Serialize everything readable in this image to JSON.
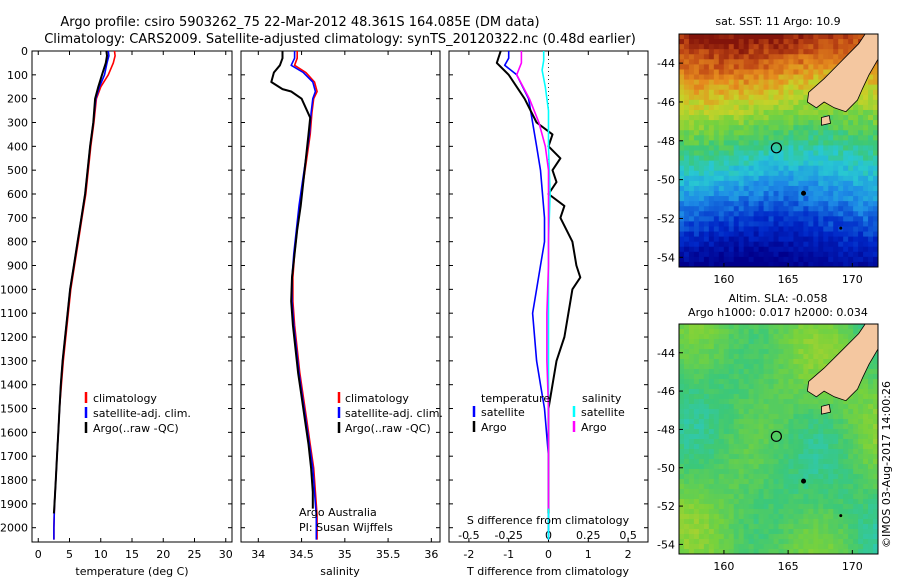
{
  "header": {
    "line1": "Argo profile: csiro 5903262_75 22-Mar-2012 48.361S 164.085E (DM data)",
    "line2": "Climatology: CARS2009. Satellite-adjusted climatology: synTS_20120322.nc (0.48d earlier)"
  },
  "colors": {
    "climatology": "#ff0000",
    "satellite": "#0000ff",
    "argo": "#000000",
    "sat_salinity": "#00ffff",
    "argo_salinity": "#ff00ff",
    "land": "#f4c7a0"
  },
  "credits": {
    "agency": "Argo Australia",
    "pi": "PI: Susan Wijffels",
    "stamp": "©IMOS 03-Aug-2017 14:00:26"
  },
  "chart_data": [
    {
      "type": "line",
      "id": "temperature",
      "xlabel": "temperature (deg C)",
      "xlim": [
        -1,
        31
      ],
      "xticks": [
        0,
        5,
        10,
        15,
        20,
        25,
        30
      ],
      "ylim": [
        0,
        2060
      ],
      "yticks": [
        0,
        100,
        200,
        300,
        400,
        500,
        600,
        700,
        800,
        900,
        1000,
        1100,
        1200,
        1300,
        1400,
        1500,
        1600,
        1700,
        1800,
        1900,
        2000
      ],
      "legend": [
        "climatology",
        "satellite-adj. clim.",
        "Argo(..raw -QC)"
      ],
      "series": [
        {
          "name": "climatology",
          "key": "climatology",
          "points": [
            [
              12.2,
              0
            ],
            [
              12.3,
              20
            ],
            [
              12.0,
              50
            ],
            [
              11.2,
              100
            ],
            [
              10.0,
              150
            ],
            [
              9.3,
              200
            ],
            [
              8.9,
              300
            ],
            [
              8.4,
              400
            ],
            [
              8.0,
              500
            ],
            [
              7.6,
              600
            ],
            [
              7.0,
              700
            ],
            [
              6.4,
              800
            ],
            [
              5.8,
              900
            ],
            [
              5.2,
              1000
            ],
            [
              4.8,
              1100
            ],
            [
              4.4,
              1200
            ],
            [
              4.0,
              1300
            ],
            [
              3.7,
              1400
            ],
            [
              3.4,
              1500
            ],
            [
              3.2,
              1600
            ],
            [
              3.0,
              1700
            ],
            [
              2.8,
              1800
            ],
            [
              2.6,
              1900
            ],
            [
              2.5,
              2000
            ],
            [
              2.5,
              2050
            ]
          ]
        },
        {
          "name": "satellite-adj. clim.",
          "key": "satellite",
          "points": [
            [
              11.2,
              0
            ],
            [
              11.3,
              20
            ],
            [
              11.0,
              50
            ],
            [
              10.6,
              100
            ],
            [
              9.8,
              150
            ],
            [
              9.2,
              200
            ],
            [
              8.8,
              300
            ],
            [
              8.3,
              400
            ],
            [
              7.9,
              500
            ],
            [
              7.5,
              600
            ],
            [
              6.9,
              700
            ],
            [
              6.3,
              800
            ],
            [
              5.7,
              900
            ],
            [
              5.1,
              1000
            ],
            [
              4.7,
              1100
            ],
            [
              4.3,
              1200
            ],
            [
              3.9,
              1300
            ],
            [
              3.6,
              1400
            ],
            [
              3.4,
              1500
            ],
            [
              3.2,
              1600
            ],
            [
              3.0,
              1700
            ],
            [
              2.8,
              1800
            ],
            [
              2.6,
              1900
            ],
            [
              2.5,
              2000
            ],
            [
              2.5,
              2050
            ]
          ]
        },
        {
          "name": "Argo(..raw -QC)",
          "key": "argo",
          "points": [
            [
              10.9,
              0
            ],
            [
              11.0,
              20
            ],
            [
              10.8,
              50
            ],
            [
              10.2,
              100
            ],
            [
              9.6,
              150
            ],
            [
              9.1,
              200
            ],
            [
              8.8,
              300
            ],
            [
              8.3,
              400
            ],
            [
              7.9,
              500
            ],
            [
              7.5,
              600
            ],
            [
              6.9,
              700
            ],
            [
              6.3,
              800
            ],
            [
              5.7,
              900
            ],
            [
              5.1,
              1000
            ],
            [
              4.7,
              1100
            ],
            [
              4.3,
              1200
            ],
            [
              3.9,
              1300
            ],
            [
              3.6,
              1400
            ],
            [
              3.4,
              1500
            ],
            [
              3.2,
              1600
            ],
            [
              3.0,
              1700
            ],
            [
              2.8,
              1800
            ],
            [
              2.6,
              1900
            ],
            [
              2.5,
              1940
            ]
          ]
        }
      ]
    },
    {
      "type": "line",
      "id": "salinity",
      "xlabel": "salinity",
      "xlim": [
        33.8,
        36.1
      ],
      "xticks": [
        34,
        34.5,
        35,
        35.5,
        36
      ],
      "ylim": [
        0,
        2060
      ],
      "legend": [
        "climatology",
        "satellite-adj. clim.",
        "Argo(..raw -QC)"
      ],
      "series": [
        {
          "name": "climatology",
          "key": "climatology",
          "points": [
            [
              34.45,
              0
            ],
            [
              34.45,
              30
            ],
            [
              34.42,
              60
            ],
            [
              34.55,
              90
            ],
            [
              34.65,
              130
            ],
            [
              34.68,
              170
            ],
            [
              34.64,
              200
            ],
            [
              34.62,
              260
            ],
            [
              34.6,
              350
            ],
            [
              34.56,
              450
            ],
            [
              34.52,
              550
            ],
            [
              34.48,
              650
            ],
            [
              34.45,
              750
            ],
            [
              34.42,
              850
            ],
            [
              34.4,
              950
            ],
            [
              34.4,
              1050
            ],
            [
              34.42,
              1150
            ],
            [
              34.45,
              1250
            ],
            [
              34.48,
              1350
            ],
            [
              34.52,
              1450
            ],
            [
              34.56,
              1550
            ],
            [
              34.6,
              1650
            ],
            [
              34.64,
              1750
            ],
            [
              34.66,
              1850
            ],
            [
              34.68,
              1950
            ],
            [
              34.68,
              2050
            ]
          ]
        },
        {
          "name": "satellite-adj. clim.",
          "key": "satellite",
          "points": [
            [
              34.42,
              0
            ],
            [
              34.42,
              30
            ],
            [
              34.38,
              60
            ],
            [
              34.52,
              90
            ],
            [
              34.63,
              130
            ],
            [
              34.66,
              170
            ],
            [
              34.63,
              200
            ],
            [
              34.61,
              260
            ],
            [
              34.59,
              350
            ],
            [
              34.55,
              450
            ],
            [
              34.51,
              550
            ],
            [
              34.47,
              650
            ],
            [
              34.44,
              750
            ],
            [
              34.41,
              850
            ],
            [
              34.39,
              950
            ],
            [
              34.39,
              1050
            ],
            [
              34.41,
              1150
            ],
            [
              34.44,
              1250
            ],
            [
              34.47,
              1350
            ],
            [
              34.51,
              1450
            ],
            [
              34.55,
              1550
            ],
            [
              34.59,
              1650
            ],
            [
              34.63,
              1750
            ],
            [
              34.65,
              1850
            ],
            [
              34.67,
              1950
            ],
            [
              34.67,
              2050
            ]
          ]
        },
        {
          "name": "Argo(..raw -QC)",
          "key": "argo",
          "points": [
            [
              34.28,
              0
            ],
            [
              34.28,
              30
            ],
            [
              34.25,
              60
            ],
            [
              34.18,
              90
            ],
            [
              34.15,
              130
            ],
            [
              34.28,
              160
            ],
            [
              34.38,
              170
            ],
            [
              34.5,
              200
            ],
            [
              34.6,
              280
            ],
            [
              34.58,
              350
            ],
            [
              34.55,
              450
            ],
            [
              34.52,
              550
            ],
            [
              34.49,
              650
            ],
            [
              34.45,
              750
            ],
            [
              34.42,
              850
            ],
            [
              34.39,
              950
            ],
            [
              34.38,
              1050
            ],
            [
              34.4,
              1150
            ],
            [
              34.43,
              1250
            ],
            [
              34.46,
              1350
            ],
            [
              34.5,
              1450
            ],
            [
              34.54,
              1550
            ],
            [
              34.58,
              1650
            ],
            [
              34.61,
              1750
            ],
            [
              34.63,
              1850
            ],
            [
              34.63,
              1920
            ]
          ]
        }
      ]
    },
    {
      "type": "line",
      "id": "differences",
      "xlabel": "T difference from climatology",
      "xlabel_top": "S difference from climatology",
      "xlim": [
        -2.5,
        2.5
      ],
      "xticks": [
        -2,
        -1,
        0,
        1,
        2
      ],
      "xticks_s": [
        "-0.5",
        "-0.25",
        "0",
        "0.25",
        "0.5"
      ],
      "ylim": [
        0,
        2060
      ],
      "legend_titles": [
        "temperature",
        "salinity"
      ],
      "legend_temperature": [
        "satellite",
        "Argo"
      ],
      "legend_salinity": [
        "satellite",
        "Argo"
      ],
      "series": [
        {
          "name": "temperature satellite",
          "key": "satellite",
          "points": [
            [
              -1.0,
              0
            ],
            [
              -1.0,
              30
            ],
            [
              -1.1,
              60
            ],
            [
              -0.8,
              100
            ],
            [
              -0.5,
              200
            ],
            [
              -0.4,
              300
            ],
            [
              -0.3,
              400
            ],
            [
              -0.2,
              500
            ],
            [
              -0.15,
              600
            ],
            [
              -0.1,
              700
            ],
            [
              -0.1,
              800
            ],
            [
              -0.2,
              900
            ],
            [
              -0.3,
              1000
            ],
            [
              -0.4,
              1100
            ],
            [
              -0.35,
              1200
            ],
            [
              -0.3,
              1300
            ],
            [
              -0.2,
              1400
            ],
            [
              -0.1,
              1500
            ],
            [
              0,
              1700
            ],
            [
              0,
              2050
            ]
          ]
        },
        {
          "name": "temperature Argo",
          "key": "argo",
          "points": [
            [
              -1.2,
              0
            ],
            [
              -1.3,
              50
            ],
            [
              -1.0,
              100
            ],
            [
              -0.8,
              150
            ],
            [
              -0.6,
              200
            ],
            [
              -0.3,
              300
            ],
            [
              0.1,
              350
            ],
            [
              0.0,
              400
            ],
            [
              0.3,
              450
            ],
            [
              0.1,
              500
            ],
            [
              0.2,
              550
            ],
            [
              0.0,
              600
            ],
            [
              0.4,
              650
            ],
            [
              0.3,
              700
            ],
            [
              0.6,
              800
            ],
            [
              0.7,
              900
            ],
            [
              0.8,
              950
            ],
            [
              0.6,
              1000
            ],
            [
              0.5,
              1100
            ],
            [
              0.4,
              1200
            ],
            [
              0.2,
              1300
            ],
            [
              0.1,
              1400
            ],
            [
              0.0,
              1500
            ],
            [
              0.0,
              1940
            ]
          ]
        },
        {
          "name": "salinity satellite",
          "key": "sat_salinity",
          "points": [
            [
              -0.03,
              0
            ],
            [
              -0.03,
              40
            ],
            [
              -0.04,
              80
            ],
            [
              -0.02,
              150
            ],
            [
              0.0,
              250
            ],
            [
              0.0,
              400
            ],
            [
              0.01,
              600
            ],
            [
              0.0,
              800
            ],
            [
              0.0,
              1000
            ],
            [
              0.0,
              1200
            ],
            [
              0.0,
              1500
            ],
            [
              0.0,
              2050
            ]
          ]
        },
        {
          "name": "salinity Argo",
          "key": "argo_salinity",
          "points": [
            [
              -0.17,
              0
            ],
            [
              -0.17,
              50
            ],
            [
              -0.2,
              100
            ],
            [
              -0.12,
              200
            ],
            [
              -0.06,
              300
            ],
            [
              -0.02,
              400
            ],
            [
              0.0,
              500
            ],
            [
              0.0,
              700
            ],
            [
              0.0,
              900
            ],
            [
              -0.01,
              1100
            ],
            [
              -0.01,
              1300
            ],
            [
              0.0,
              1500
            ],
            [
              0.0,
              1920
            ]
          ]
        }
      ]
    },
    {
      "type": "heatmap",
      "id": "sst_map",
      "title": "sat. SST: 11 Argo: 10.9",
      "xticks": [
        160,
        165,
        170
      ],
      "yticks": [
        -44,
        -46,
        -48,
        -50,
        -52,
        -54
      ],
      "xlim": [
        156.5,
        172
      ],
      "ylim": [
        -54.5,
        -42.5
      ],
      "argo_position": [
        164.085,
        -48.361
      ]
    },
    {
      "type": "heatmap",
      "id": "sla_map",
      "title": "Altim. SLA: -0.058",
      "subtitle": "Argo h1000: 0.017 h2000: 0.034",
      "xticks": [
        160,
        165,
        170
      ],
      "yticks": [
        -44,
        -46,
        -48,
        -50,
        -52,
        -54
      ],
      "xlim": [
        156.5,
        172
      ],
      "ylim": [
        -54.5,
        -42.5
      ],
      "argo_position": [
        164.085,
        -48.361
      ]
    }
  ]
}
